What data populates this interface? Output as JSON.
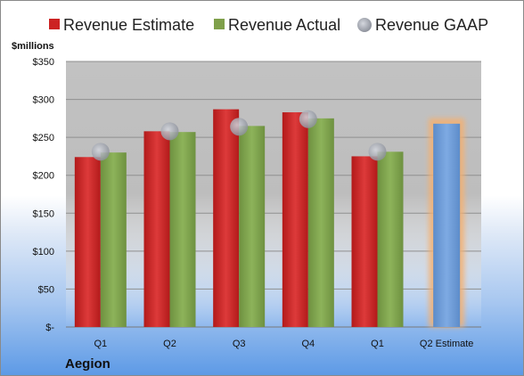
{
  "chart_data": {
    "type": "bar",
    "unit_label": "$millions",
    "company": "Aegion",
    "categories": [
      "Q1",
      "Q2",
      "Q3",
      "Q4",
      "Q1",
      "Q2 Estimate"
    ],
    "y_ticks": [
      "$-",
      "$50",
      "$100",
      "$150",
      "$200",
      "$250",
      "$300",
      "$350"
    ],
    "ylim": [
      0,
      350
    ],
    "grid": true,
    "legend_position": "top",
    "series": [
      {
        "name": "Revenue Estimate",
        "color": "#cc2222",
        "type": "bar",
        "values": [
          224,
          258,
          287,
          283,
          225,
          null
        ]
      },
      {
        "name": "Revenue Actual",
        "color": "#7fa04a",
        "type": "bar",
        "values": [
          230,
          257,
          265,
          275,
          231,
          null
        ]
      },
      {
        "name": "Revenue GAAP",
        "color": "#a0a4ae",
        "type": "marker",
        "values": [
          231,
          258,
          264,
          274,
          231,
          null
        ]
      }
    ],
    "forecast": {
      "category": "Q2 Estimate",
      "value": 268,
      "color": "#6b9ad6",
      "highlight": "#f5b070"
    }
  }
}
